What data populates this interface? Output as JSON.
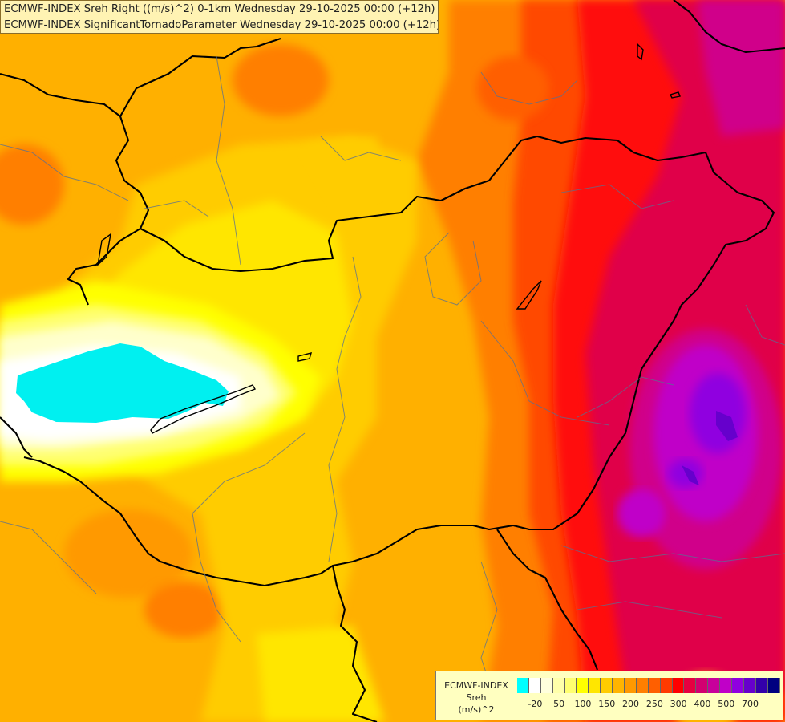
{
  "header": {
    "line1": "ECMWF-INDEX Sreh Right ((m/s)^2) 0-1km Wednesday 29-10-2025 00:00 (+12h)",
    "line2": "ECMWF-INDEX SignificantTornadoParameter Wednesday 29-10-2025 00:00 (+12h)"
  },
  "legend": {
    "line1": "ECMWF-INDEX",
    "line2": "Sreh",
    "line3": "(m/s)^2",
    "colors": [
      "#00ffff",
      "#ffffff",
      "#ffffdd",
      "#ffffaa",
      "#ffff70",
      "#ffff00",
      "#ffe600",
      "#ffcc00",
      "#ffb400",
      "#ff9900",
      "#ff7f00",
      "#ff5f00",
      "#ff3a00",
      "#ff0000",
      "#e60040",
      "#d20070",
      "#c8009b",
      "#c000c8",
      "#9000e0",
      "#6600cc",
      "#3300aa",
      "#000080"
    ],
    "ticks": [
      {
        "label": "-20",
        "slot": 1
      },
      {
        "label": "50",
        "slot": 3
      },
      {
        "label": "100",
        "slot": 5
      },
      {
        "label": "150",
        "slot": 7
      },
      {
        "label": "200",
        "slot": 9
      },
      {
        "label": "250",
        "slot": 11
      },
      {
        "label": "300",
        "slot": 13
      },
      {
        "label": "400",
        "slot": 15
      },
      {
        "label": "500",
        "slot": 17
      },
      {
        "label": "700",
        "slot": 19
      }
    ]
  }
}
